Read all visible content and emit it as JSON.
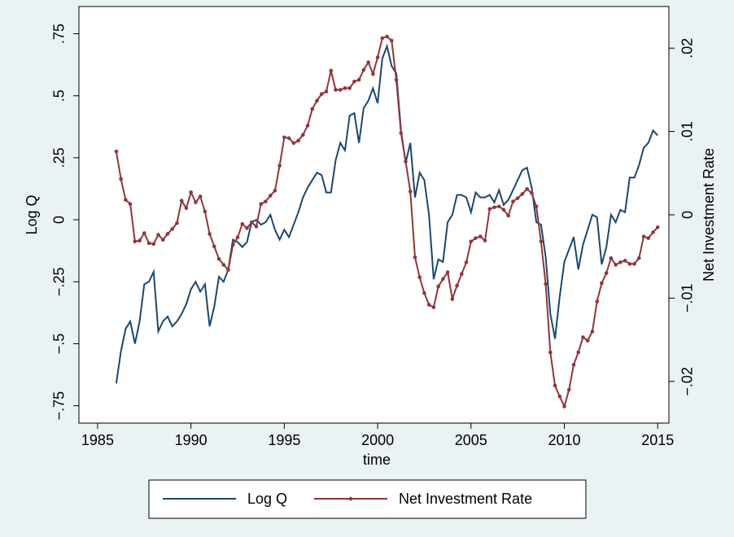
{
  "chart_data": {
    "type": "line",
    "x_label": "time",
    "y_label": "Log Q",
    "y2_label": "Net Investment Rate",
    "xlim": [
      1984,
      2015.6
    ],
    "xticks": [
      1985,
      1990,
      1995,
      2000,
      2005,
      2010,
      2015
    ],
    "ylim": [
      -0.82,
      0.86
    ],
    "yticks": [
      {
        "value": -0.75,
        "label": "−.75"
      },
      {
        "value": -0.5,
        "label": "−.5"
      },
      {
        "value": -0.25,
        "label": "−.25"
      },
      0,
      {
        "value": 0.25,
        "label": ".25"
      },
      {
        "value": 0.5,
        "label": ".5"
      },
      {
        "value": 0.75,
        "label": ".75"
      }
    ],
    "y2lim": [
      -0.025,
      0.025
    ],
    "y2ticks": [
      {
        "value": -0.02,
        "label": "−.02"
      },
      {
        "value": -0.01,
        "label": "−.01"
      },
      0,
      {
        "value": 0.01,
        "label": ".01"
      },
      {
        "value": 0.02,
        "label": ".02"
      }
    ],
    "legend": "bottom",
    "grid": false,
    "x": [
      1986,
      1986.25,
      1986.5,
      1986.75,
      1987,
      1987.25,
      1987.5,
      1987.75,
      1988,
      1988.25,
      1988.5,
      1988.75,
      1989,
      1989.25,
      1989.5,
      1989.75,
      1990,
      1990.25,
      1990.5,
      1990.75,
      1991,
      1991.25,
      1991.5,
      1991.75,
      1992,
      1992.25,
      1992.5,
      1992.75,
      1993,
      1993.25,
      1993.5,
      1993.75,
      1994,
      1994.25,
      1994.5,
      1994.75,
      1995,
      1995.25,
      1995.5,
      1995.75,
      1996,
      1996.25,
      1996.5,
      1996.75,
      1997,
      1997.25,
      1997.5,
      1997.75,
      1998,
      1998.25,
      1998.5,
      1998.75,
      1999,
      1999.25,
      1999.5,
      1999.75,
      2000,
      2000.25,
      2000.5,
      2000.75,
      2001,
      2001.25,
      2001.5,
      2001.75,
      2002,
      2002.25,
      2002.5,
      2002.75,
      2003,
      2003.25,
      2003.5,
      2003.75,
      2004,
      2004.25,
      2004.5,
      2004.75,
      2005,
      2005.25,
      2005.5,
      2005.75,
      2006,
      2006.25,
      2006.5,
      2006.75,
      2007,
      2007.25,
      2007.5,
      2007.75,
      2008,
      2008.25,
      2008.5,
      2008.75,
      2009,
      2009.25,
      2009.5,
      2009.75,
      2010,
      2010.25,
      2010.5,
      2010.75,
      2011,
      2011.25,
      2011.5,
      2011.75,
      2012,
      2012.25,
      2012.5,
      2012.75,
      2013,
      2013.25,
      2013.5,
      2013.75,
      2014,
      2014.25,
      2014.5,
      2014.75,
      2015
    ],
    "series": [
      {
        "name": "Log Q",
        "color": "#1a476f",
        "markers": false,
        "values": [
          -0.66,
          -0.53,
          -0.44,
          -0.41,
          -0.5,
          -0.41,
          -0.26,
          -0.25,
          -0.21,
          -0.45,
          -0.41,
          -0.39,
          -0.43,
          -0.41,
          -0.38,
          -0.34,
          -0.28,
          -0.25,
          -0.29,
          -0.26,
          -0.43,
          -0.35,
          -0.23,
          -0.25,
          -0.2,
          -0.08,
          -0.09,
          -0.11,
          -0.09,
          -0.01,
          0,
          -0.02,
          -0.01,
          0.02,
          -0.04,
          -0.08,
          -0.04,
          -0.07,
          -0.02,
          0.03,
          0.09,
          0.13,
          0.16,
          0.19,
          0.18,
          0.11,
          0.11,
          0.24,
          0.31,
          0.28,
          0.42,
          0.43,
          0.31,
          0.45,
          0.48,
          0.53,
          0.47,
          0.65,
          0.7,
          0.62,
          0.59,
          0.36,
          0.23,
          0.31,
          0.09,
          0.19,
          0.16,
          0.02,
          -0.24,
          -0.16,
          -0.17,
          -0.01,
          0.02,
          0.1,
          0.1,
          0.09,
          0.03,
          0.11,
          0.09,
          0.09,
          0.1,
          0.07,
          0.12,
          0.06,
          0.08,
          0.12,
          0.16,
          0.2,
          0.21,
          0.13,
          -0.01,
          -0.02,
          -0.15,
          -0.38,
          -0.48,
          -0.31,
          -0.17,
          -0.12,
          -0.07,
          -0.2,
          -0.1,
          -0.04,
          0.02,
          0.01,
          -0.18,
          -0.11,
          0.02,
          -0.01,
          0.04,
          0.03,
          0.17,
          0.17,
          0.22,
          0.29,
          0.31,
          0.36,
          0.34
        ]
      },
      {
        "name": "Net Investment Rate",
        "color": "#90353b",
        "axis": "y2",
        "markers": true,
        "values": [
          0.0076,
          0.0043,
          0.0018,
          0.0013,
          -0.0032,
          -0.0031,
          -0.0022,
          -0.0034,
          -0.0035,
          -0.0024,
          -0.003,
          -0.0023,
          -0.0017,
          -0.001,
          0.0017,
          0.0008,
          0.0027,
          0.0015,
          0.0022,
          0.0004,
          -0.0023,
          -0.0038,
          -0.0053,
          -0.006,
          -0.0066,
          -0.0036,
          -0.0027,
          -0.0011,
          -0.0016,
          -0.0009,
          -0.0014,
          0.0013,
          0.0016,
          0.0023,
          0.0029,
          0.0059,
          0.0093,
          0.0092,
          0.0086,
          0.0089,
          0.0096,
          0.0107,
          0.0127,
          0.0137,
          0.0145,
          0.0148,
          0.0173,
          0.015,
          0.015,
          0.0152,
          0.0152,
          0.016,
          0.0162,
          0.0174,
          0.0183,
          0.0169,
          0.0189,
          0.0212,
          0.0214,
          0.0209,
          0.0162,
          0.0098,
          0.0064,
          0.0028,
          -0.0051,
          -0.0075,
          -0.0094,
          -0.0108,
          -0.0111,
          -0.0086,
          -0.0077,
          -0.0069,
          -0.0101,
          -0.0085,
          -0.0071,
          -0.0057,
          -0.0032,
          -0.0028,
          -0.0026,
          -0.0031,
          0.0007,
          0.0009,
          0.001,
          0.0006,
          -0.0001,
          0.0016,
          0.002,
          0.0025,
          0.0031,
          0.0026,
          0.001,
          -0.0032,
          -0.0083,
          -0.0165,
          -0.0205,
          -0.0218,
          -0.023,
          -0.021,
          -0.018,
          -0.0165,
          -0.0147,
          -0.0151,
          -0.014,
          -0.0104,
          -0.0082,
          -0.007,
          -0.0052,
          -0.006,
          -0.0057,
          -0.0055,
          -0.0059,
          -0.0059,
          -0.0052,
          -0.0026,
          -0.0028,
          -0.0021,
          -0.0015
        ]
      }
    ]
  }
}
